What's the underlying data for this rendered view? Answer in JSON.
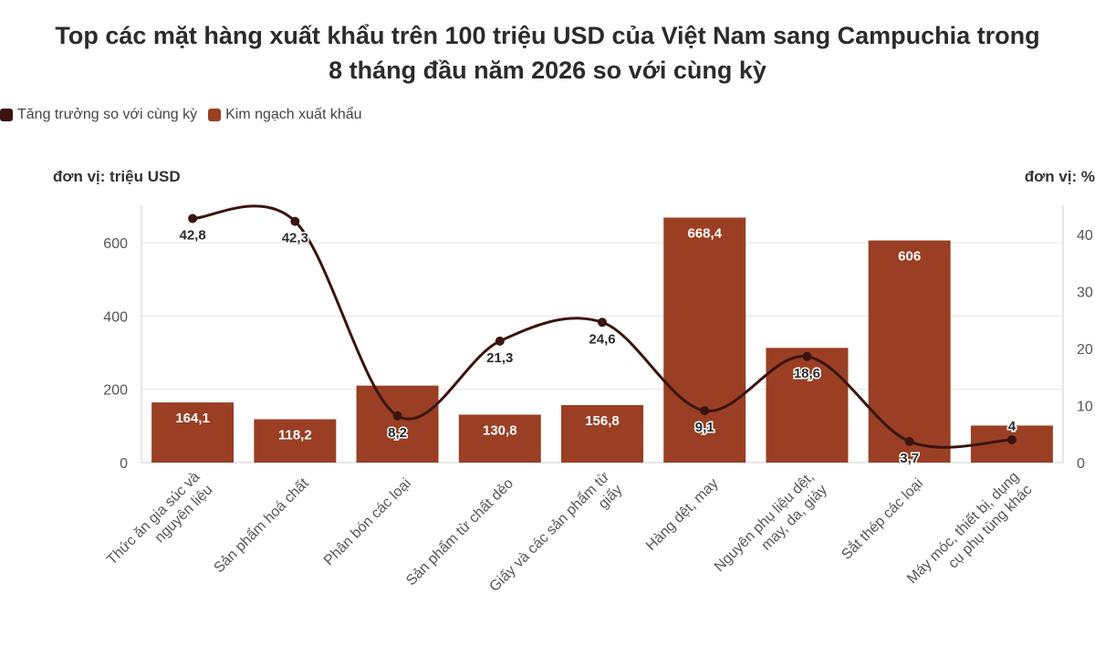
{
  "title_line1": "Top các mặt hàng xuất khẩu trên 100 triệu USD của Việt Nam sang Campuchia trong",
  "title_line2": "8 tháng đầu năm 2026 so với cùng kỳ",
  "legend": {
    "line_label": "Tăng trưởng so với cùng kỳ",
    "bar_label": "Kim ngạch xuất khẩu"
  },
  "units": {
    "left": "đơn vị: triệu USD",
    "right": "đơn vị: %"
  },
  "colors": {
    "bar": "#9a3f24",
    "line": "#3a140e",
    "grid": "#e6e6e6",
    "tick": "#555555"
  },
  "chart_data": {
    "type": "bar",
    "categories": [
      "Thức ăn gia súc và nguyên liệu",
      "Sản phẩm hoá chất",
      "Phân bón các loại",
      "Sản phẩm từ chất dẻo",
      "Giấy và các sản phẩm từ giấy",
      "Hàng dệt, may",
      "Nguyên phụ liệu dệt, may, da, giày",
      "Sắt thép các loại",
      "Máy móc, thiết bị, dụng cụ phụ tùng khác"
    ],
    "category_lines": [
      [
        "Thức ăn gia súc và",
        "nguyên liệu"
      ],
      [
        "Sản phẩm hoá chất"
      ],
      [
        "Phân bón các loại"
      ],
      [
        "Sản phẩm từ chất dẻo"
      ],
      [
        "Giấy và các sản phẩm từ",
        "giấy"
      ],
      [
        "Hàng dệt, may"
      ],
      [
        "Nguyên phụ liệu dệt,",
        "may, da, giày"
      ],
      [
        "Sắt thép các loại"
      ],
      [
        "Máy móc, thiết bị, dụng",
        "cụ phụ tùng khác"
      ]
    ],
    "series": [
      {
        "name": "Kim ngạch xuất khẩu",
        "type": "bar",
        "axis": "left",
        "values": [
          164.1,
          118.2,
          210,
          130.8,
          156.8,
          668.4,
          313,
          606,
          101
        ],
        "labels": [
          "164,1",
          "118,2",
          "",
          "130,8",
          "156,8",
          "668,4",
          "",
          "606",
          ""
        ]
      },
      {
        "name": "Tăng trưởng so với cùng kỳ",
        "type": "line",
        "axis": "right",
        "values": [
          42.8,
          42.3,
          8.2,
          21.3,
          24.6,
          9.1,
          18.6,
          3.7,
          4
        ],
        "labels": [
          "42,8",
          "42,3",
          "8,2",
          "21,3",
          "24,6",
          "9,1",
          "18,6",
          "3,7",
          "4"
        ]
      }
    ],
    "y_left": {
      "ticks": [
        0,
        200,
        400,
        600
      ],
      "tick_labels": [
        "0",
        "200",
        "400",
        "600"
      ],
      "lim": [
        0,
        700
      ]
    },
    "y_right": {
      "ticks": [
        0,
        10,
        20,
        30,
        40
      ],
      "tick_labels": [
        "0",
        "10",
        "20",
        "30",
        "40"
      ],
      "lim": [
        0,
        45
      ]
    },
    "grid": true,
    "legend_position": "top-left"
  }
}
